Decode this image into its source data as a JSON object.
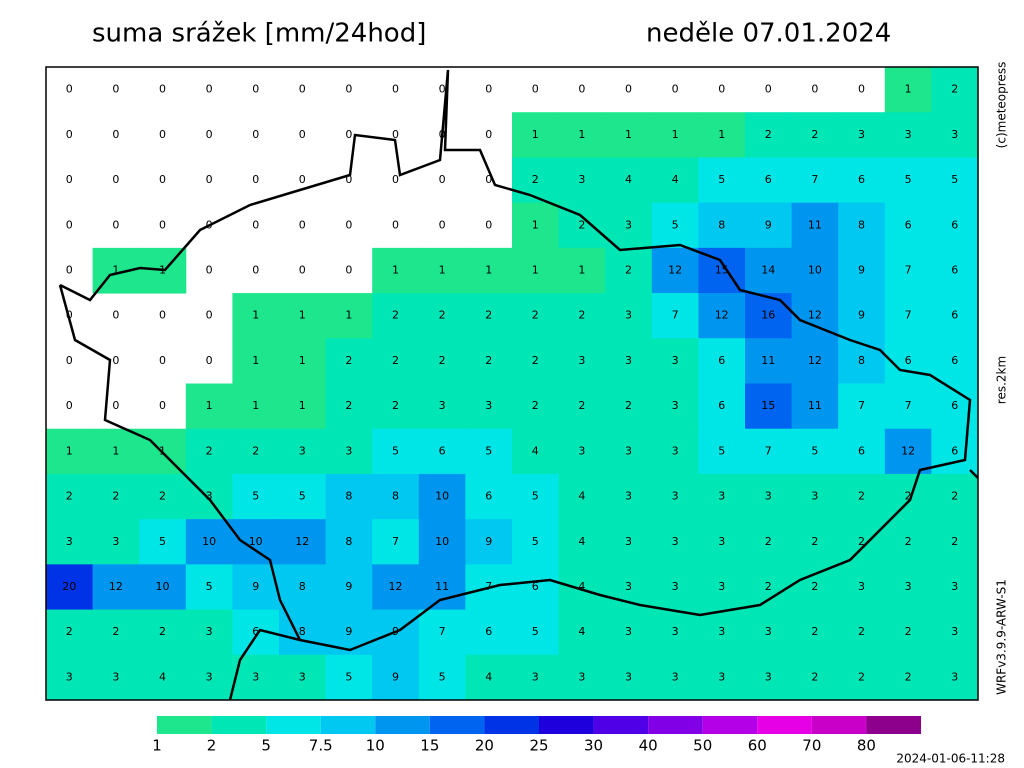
{
  "header": {
    "title": "suma srážek [mm/24hod]",
    "date": "neděle 07.01.2024"
  },
  "side_labels": {
    "copyright": "(c)meteopress",
    "resolution": "res.2km",
    "model": "WRFv3.9.9-ARW-S1"
  },
  "legend": {
    "levels": [
      1,
      2,
      5,
      7.5,
      10,
      15,
      20,
      25,
      30,
      40,
      50,
      60,
      70,
      80
    ],
    "colors": [
      "#1ee68c",
      "#00e6b4",
      "#00e6e6",
      "#00c8f0",
      "#0096f0",
      "#0064f0",
      "#0032e6",
      "#1e00dc",
      "#5000e6",
      "#8200e6",
      "#b400e6",
      "#e600e6",
      "#c800c8",
      "#8c008c"
    ]
  },
  "timestamp": "2024-01-06-11:28",
  "grid": {
    "rows": [
      [
        0,
        0,
        0,
        0,
        0,
        0,
        0,
        0,
        0,
        0,
        0,
        0,
        0,
        0,
        0,
        0,
        0,
        0,
        1,
        2
      ],
      [
        0,
        0,
        0,
        0,
        0,
        0,
        0,
        0,
        0,
        0,
        1,
        1,
        1,
        1,
        1,
        2,
        2,
        3,
        3,
        3
      ],
      [
        0,
        0,
        0,
        0,
        0,
        0,
        0,
        0,
        0,
        0,
        2,
        3,
        4,
        4,
        5,
        6,
        7,
        6,
        5,
        5
      ],
      [
        0,
        0,
        0,
        0,
        0,
        0,
        0,
        0,
        0,
        0,
        1,
        2,
        3,
        5,
        8,
        9,
        11,
        8,
        6,
        6
      ],
      [
        0,
        1,
        1,
        0,
        0,
        0,
        0,
        1,
        1,
        1,
        1,
        1,
        2,
        12,
        15,
        14,
        10,
        9,
        7,
        6
      ],
      [
        0,
        0,
        0,
        0,
        1,
        1,
        1,
        2,
        2,
        2,
        2,
        2,
        3,
        7,
        12,
        16,
        12,
        9,
        7,
        6
      ],
      [
        0,
        0,
        0,
        0,
        1,
        1,
        2,
        2,
        2,
        2,
        2,
        3,
        3,
        3,
        6,
        11,
        12,
        8,
        6,
        6
      ],
      [
        0,
        0,
        0,
        1,
        1,
        1,
        2,
        2,
        3,
        3,
        2,
        2,
        2,
        3,
        6,
        15,
        11,
        7,
        7,
        6
      ],
      [
        1,
        1,
        1,
        2,
        2,
        3,
        3,
        5,
        6,
        5,
        4,
        3,
        3,
        3,
        5,
        7,
        5,
        6,
        12,
        6
      ],
      [
        2,
        2,
        2,
        3,
        5,
        5,
        8,
        8,
        10,
        6,
        5,
        4,
        3,
        3,
        3,
        3,
        3,
        2,
        2,
        2
      ],
      [
        3,
        3,
        5,
        10,
        10,
        12,
        8,
        7,
        10,
        9,
        5,
        4,
        3,
        3,
        3,
        2,
        2,
        2,
        2,
        2
      ],
      [
        20,
        12,
        10,
        5,
        9,
        8,
        9,
        12,
        11,
        7,
        6,
        4,
        3,
        3,
        3,
        2,
        2,
        3,
        3,
        3
      ],
      [
        2,
        2,
        2,
        3,
        6,
        8,
        9,
        9,
        7,
        6,
        5,
        4,
        3,
        3,
        3,
        3,
        2,
        2,
        2,
        3
      ],
      [
        3,
        3,
        4,
        3,
        3,
        3,
        5,
        9,
        5,
        4,
        3,
        3,
        3,
        3,
        3,
        3,
        2,
        2,
        2,
        3
      ]
    ]
  }
}
